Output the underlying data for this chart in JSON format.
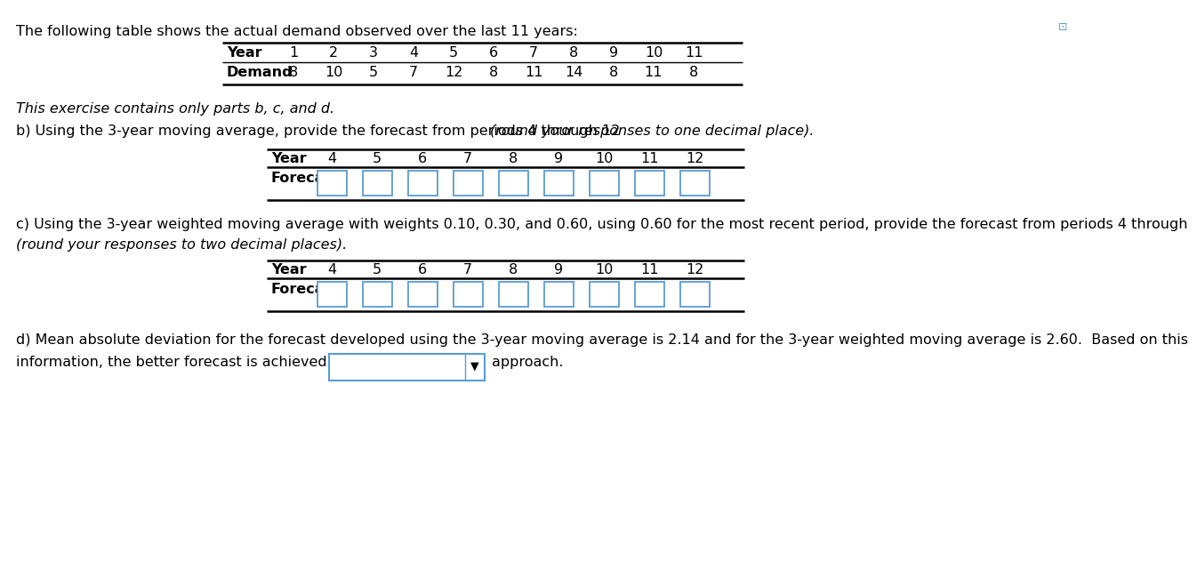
{
  "title_text": "The following table shows the actual demand observed over the last 11 years:",
  "table1_header": [
    "Year",
    "1",
    "2",
    "3",
    "4",
    "5",
    "6",
    "7",
    "8",
    "9",
    "10",
    "11"
  ],
  "table1_row": [
    "Demand",
    "8",
    "10",
    "5",
    "7",
    "12",
    "8",
    "11",
    "14",
    "8",
    "11",
    "8"
  ],
  "italic_text": "This exercise contains only parts b, c, and d.",
  "part_b_text1": "b) Using the 3-year moving average, provide the forecast from periods 4 through 12 ",
  "part_b_italic": "(round your responses to one decimal place).",
  "table_b_year": [
    "Year",
    "4",
    "5",
    "6",
    "7",
    "8",
    "9",
    "10",
    "11",
    "12"
  ],
  "table_b_forecast_label": "Forecast",
  "part_c_text1": "c) Using the 3-year weighted moving average with weights 0.10, 0.30, and 0.60, using 0.60 for the most recent period, provide the forecast from periods 4 through",
  "part_c_text2": "(round your responses to two decimal places).",
  "table_c_year": [
    "Year",
    "4",
    "5",
    "6",
    "7",
    "8",
    "9",
    "10",
    "11",
    "12"
  ],
  "table_c_forecast_label": "Forecast",
  "part_d_text1": "d) Mean absolute deviation for the forecast developed using the 3-year moving average is 2.14 and for the 3-year weighted moving average is 2.60.  Based on this",
  "part_d_text2": "information, the better forecast is achieved using the",
  "part_d_text3": "approach.",
  "bg_color": "#ffffff",
  "box_color": "#5b9bd5",
  "text_color": "#000000",
  "line_color": "#000000",
  "font_size": 11.5,
  "bold_font_size": 11.5
}
